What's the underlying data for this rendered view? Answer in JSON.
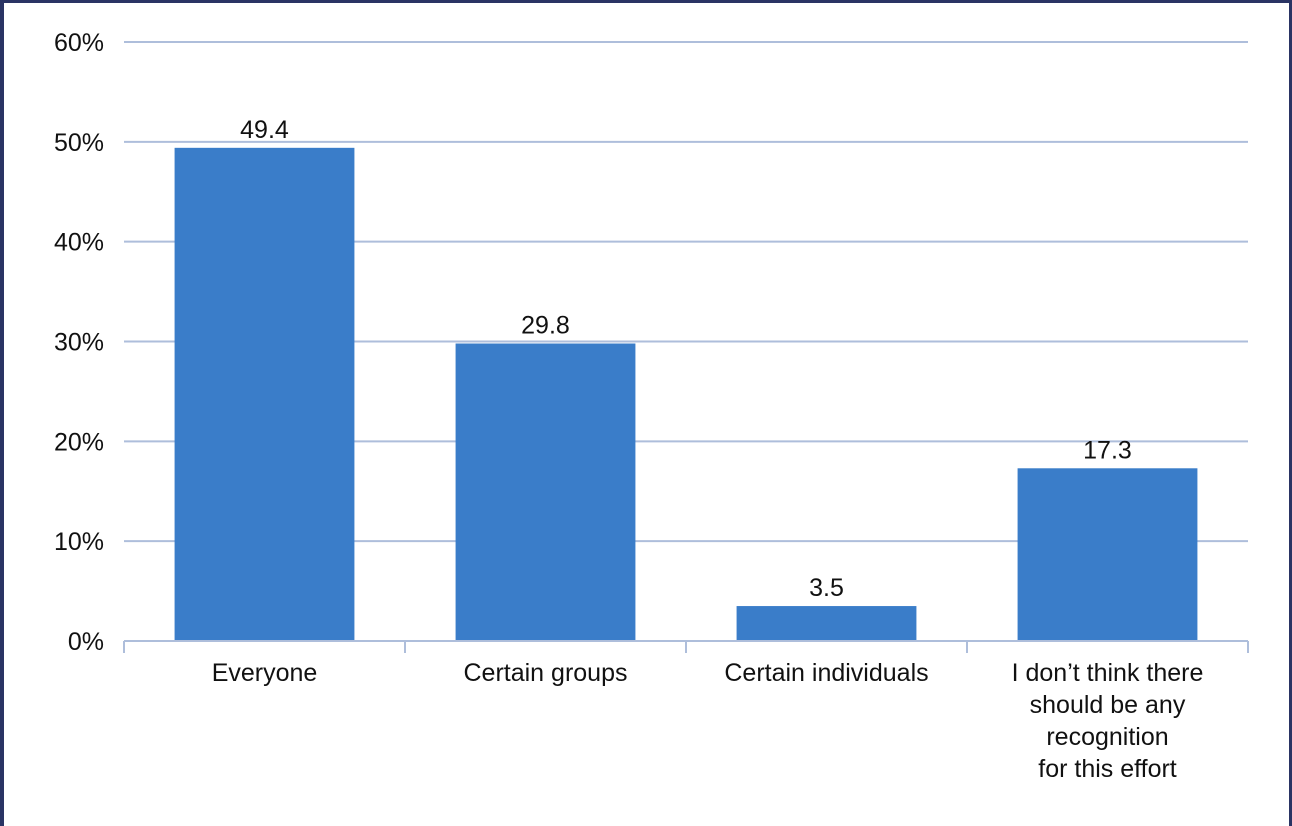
{
  "chart_data": {
    "type": "bar",
    "title": "",
    "xlabel": "",
    "ylabel": "",
    "categories": [
      [
        "Everyone"
      ],
      [
        "Certain groups"
      ],
      [
        "Certain individuals"
      ],
      [
        "I don’t think there",
        "should be any",
        "recognition",
        "for this effort"
      ]
    ],
    "values": [
      49.4,
      29.8,
      3.5,
      17.3
    ],
    "data_labels": [
      "49.4",
      "29.8",
      "3.5",
      "17.3"
    ],
    "ylim": [
      0,
      60
    ],
    "yticks": [
      0,
      10,
      20,
      30,
      40,
      50,
      60
    ],
    "ytick_labels": [
      "0%",
      "10%",
      "20%",
      "30%",
      "40%",
      "50%",
      "60%"
    ],
    "grid": true,
    "legend": "none",
    "colors": {
      "bar": "#3a7dc9",
      "grid": "#aebedb",
      "axis": "#aebedb",
      "border": "#2a3464"
    }
  }
}
